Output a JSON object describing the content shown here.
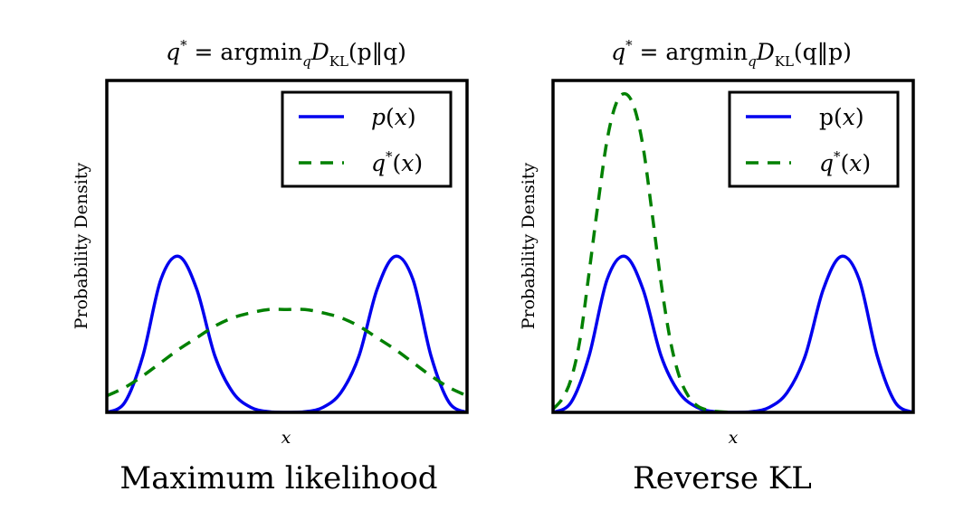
{
  "chart_data": [
    {
      "type": "line",
      "title": "q* = argmin_q D_KL(p||q)",
      "title_parts": {
        "lhs": "q",
        "sup": "*",
        "eq": " = argmin",
        "sub": "q",
        "op": "D",
        "opsub": "KL",
        "args": "(p‖q)"
      },
      "caption": "Maximum likelihood",
      "xlabel": "x",
      "ylabel": "Probability Density",
      "xlim": [
        0,
        1
      ],
      "ylim": [
        0,
        1
      ],
      "legend_position": "top-right",
      "series": [
        {
          "name": "p(x)",
          "label": "p(x)",
          "color": "#0000ee",
          "style": "solid",
          "x": [
            0,
            0.05,
            0.1,
            0.15,
            0.2,
            0.25,
            0.3,
            0.35,
            0.4,
            0.45,
            0.5,
            0.55,
            0.6,
            0.65,
            0.7,
            0.75,
            0.8,
            0.85,
            0.9,
            0.95,
            1
          ],
          "y": [
            0.0,
            0.03,
            0.17,
            0.4,
            0.47,
            0.37,
            0.17,
            0.06,
            0.015,
            0.002,
            0.0,
            0.002,
            0.015,
            0.06,
            0.17,
            0.37,
            0.47,
            0.4,
            0.17,
            0.03,
            0.0
          ]
        },
        {
          "name": "q*(x)",
          "label": "q*(x)",
          "color": "#008000",
          "style": "dashed",
          "x": [
            0,
            0.05,
            0.1,
            0.15,
            0.2,
            0.25,
            0.3,
            0.35,
            0.4,
            0.45,
            0.5,
            0.55,
            0.6,
            0.65,
            0.7,
            0.75,
            0.8,
            0.85,
            0.9,
            0.95,
            1
          ],
          "y": [
            0.05,
            0.075,
            0.11,
            0.15,
            0.19,
            0.225,
            0.26,
            0.285,
            0.3,
            0.31,
            0.31,
            0.31,
            0.3,
            0.285,
            0.26,
            0.225,
            0.19,
            0.15,
            0.11,
            0.075,
            0.05
          ]
        }
      ]
    },
    {
      "type": "line",
      "title": "q* = argmin_q D_KL(q||p)",
      "title_parts": {
        "lhs": "q",
        "sup": "*",
        "eq": " = argmin",
        "sub": "q",
        "op": "D",
        "opsub": "KL",
        "args": "(q‖p)"
      },
      "caption": "Reverse KL",
      "xlabel": "x",
      "ylabel": "Probability Density",
      "xlim": [
        0,
        1
      ],
      "ylim": [
        0,
        1
      ],
      "legend_position": "top-right",
      "series": [
        {
          "name": "p(x)",
          "label": "p(x)",
          "color": "#0000ee",
          "style": "solid",
          "x": [
            0,
            0.05,
            0.1,
            0.15,
            0.2,
            0.25,
            0.3,
            0.35,
            0.4,
            0.45,
            0.5,
            0.55,
            0.6,
            0.65,
            0.7,
            0.75,
            0.8,
            0.85,
            0.9,
            0.95,
            1
          ],
          "y": [
            0.0,
            0.03,
            0.17,
            0.4,
            0.47,
            0.37,
            0.17,
            0.06,
            0.015,
            0.002,
            0.0,
            0.002,
            0.015,
            0.06,
            0.17,
            0.37,
            0.47,
            0.4,
            0.17,
            0.03,
            0.0
          ]
        },
        {
          "name": "q*(x)",
          "label": "q*(x)",
          "color": "#008000",
          "style": "dashed",
          "x": [
            0,
            0.025,
            0.05,
            0.075,
            0.1,
            0.125,
            0.15,
            0.175,
            0.2,
            0.225,
            0.25,
            0.275,
            0.3,
            0.325,
            0.35,
            0.375,
            0.4,
            0.425,
            0.45,
            0.5
          ],
          "y": [
            0.01,
            0.04,
            0.1,
            0.22,
            0.42,
            0.63,
            0.82,
            0.93,
            0.96,
            0.92,
            0.8,
            0.6,
            0.39,
            0.22,
            0.11,
            0.05,
            0.02,
            0.008,
            0.003,
            0.0
          ]
        }
      ]
    }
  ]
}
